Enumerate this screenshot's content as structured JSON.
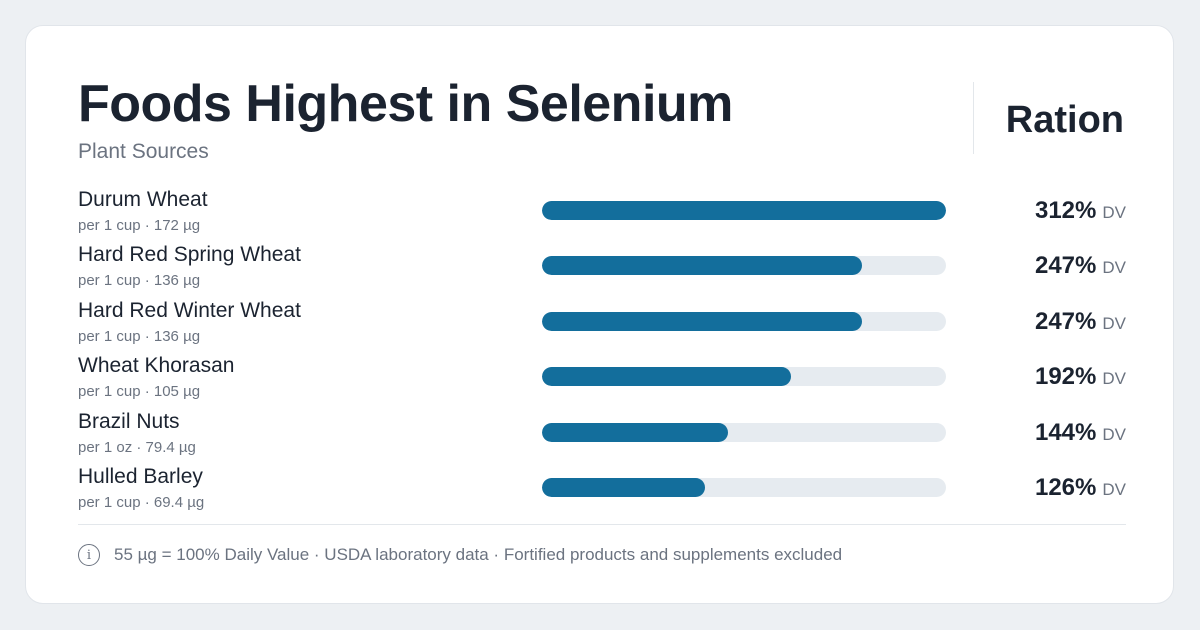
{
  "title": "Foods Highest in Selenium",
  "subtitle": "Plant Sources",
  "brand": "Ration",
  "dv_label": "DV",
  "colors": {
    "bar": "#136e9c",
    "track": "#e6ebf0",
    "text": "#1b2330",
    "muted": "#6b7380"
  },
  "footer": {
    "icon": "info-icon",
    "icon_glyph": "i",
    "text": "55 µg = 100% Daily Value · USDA laboratory data · Fortified products and supplements excluded"
  },
  "chart_data": {
    "type": "bar",
    "orientation": "horizontal",
    "title": "Foods Highest in Selenium",
    "subtitle": "Plant Sources",
    "xlim": [
      0,
      312
    ],
    "unit": "% DV",
    "categories": [
      "Durum Wheat",
      "Hard Red Spring Wheat",
      "Hard Red Winter Wheat",
      "Wheat Khorasan",
      "Brazil Nuts",
      "Hulled Barley"
    ],
    "values": [
      312,
      247,
      247,
      192,
      144,
      126
    ],
    "rows": [
      {
        "name": "Durum Wheat",
        "serving": "per 1 cup · 172 µg",
        "value": 312,
        "value_label": "312%"
      },
      {
        "name": "Hard Red Spring Wheat",
        "serving": "per 1 cup · 136 µg",
        "value": 247,
        "value_label": "247%"
      },
      {
        "name": "Hard Red Winter Wheat",
        "serving": "per 1 cup · 136 µg",
        "value": 247,
        "value_label": "247%"
      },
      {
        "name": "Wheat Khorasan",
        "serving": "per 1 cup · 105 µg",
        "value": 192,
        "value_label": "192%"
      },
      {
        "name": "Brazil Nuts",
        "serving": "per 1 oz · 79.4 µg",
        "value": 144,
        "value_label": "144%"
      },
      {
        "name": "Hulled Barley",
        "serving": "per 1 cup · 69.4 µg",
        "value": 126,
        "value_label": "126%"
      }
    ]
  }
}
